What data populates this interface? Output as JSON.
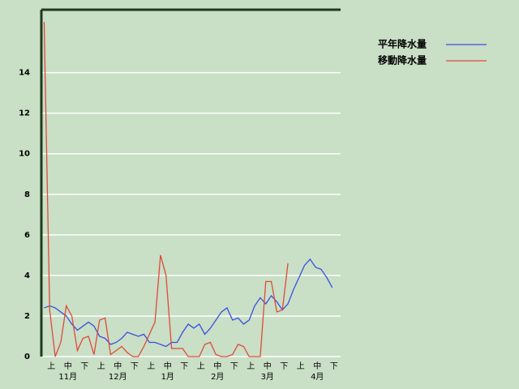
{
  "chart_data": {
    "type": "line",
    "categories": [
      null,
      "上",
      null,
      null,
      "中",
      null,
      null,
      "下",
      null,
      null,
      "上",
      null,
      null,
      "中",
      null,
      null,
      "下",
      null,
      null,
      "上",
      null,
      null,
      "中",
      null,
      null,
      "下",
      null,
      null,
      "上",
      null,
      null,
      "中",
      null,
      null,
      "下",
      null,
      null,
      "上",
      null,
      null,
      "中",
      null,
      null,
      "下",
      null,
      null,
      "上",
      null,
      null,
      "中",
      null,
      null,
      "下",
      null
    ],
    "months": [
      "11月",
      "12月",
      "1月",
      "2月",
      "3月",
      "4月"
    ],
    "series": [
      {
        "name": "平年降水量",
        "color": "#3a4fe0",
        "values": [
          2.4,
          2.5,
          2.4,
          2.2,
          2.0,
          1.6,
          1.3,
          1.5,
          1.7,
          1.5,
          1.0,
          0.9,
          0.6,
          0.7,
          0.9,
          1.2,
          1.1,
          1.0,
          1.1,
          0.7,
          0.7,
          0.6,
          0.5,
          0.7,
          0.7,
          1.2,
          1.6,
          1.4,
          1.6,
          1.1,
          1.4,
          1.8,
          2.2,
          2.4,
          1.8,
          1.9,
          1.6,
          1.8,
          2.5,
          2.9,
          2.6,
          3.0,
          2.7,
          2.3,
          2.6,
          3.3,
          3.9,
          4.5,
          4.8,
          4.4,
          4.3,
          3.9,
          3.4,
          null
        ]
      },
      {
        "name": "移動降水量",
        "color": "#e04a3a",
        "values": [
          16.5,
          2.3,
          0,
          0.7,
          2.5,
          2.0,
          0.3,
          0.9,
          1.0,
          0.1,
          1.8,
          1.9,
          0.1,
          0.3,
          0.5,
          0.2,
          0,
          0,
          0.5,
          1.1,
          1.7,
          5.0,
          4.0,
          0.4,
          0.4,
          0.4,
          0,
          0,
          0,
          0.6,
          0.7,
          0.1,
          0,
          0,
          0.1,
          0.6,
          0.5,
          0,
          0,
          0,
          3.7,
          3.7,
          2.2,
          2.3,
          4.6,
          null,
          null,
          null,
          null,
          null,
          null,
          null,
          null,
          null
        ]
      }
    ],
    "ylim": [
      0,
      17.1
    ],
    "yticks": [
      0,
      2,
      4,
      6,
      8,
      10,
      12,
      14
    ],
    "grid": true,
    "legend": "top-right"
  }
}
